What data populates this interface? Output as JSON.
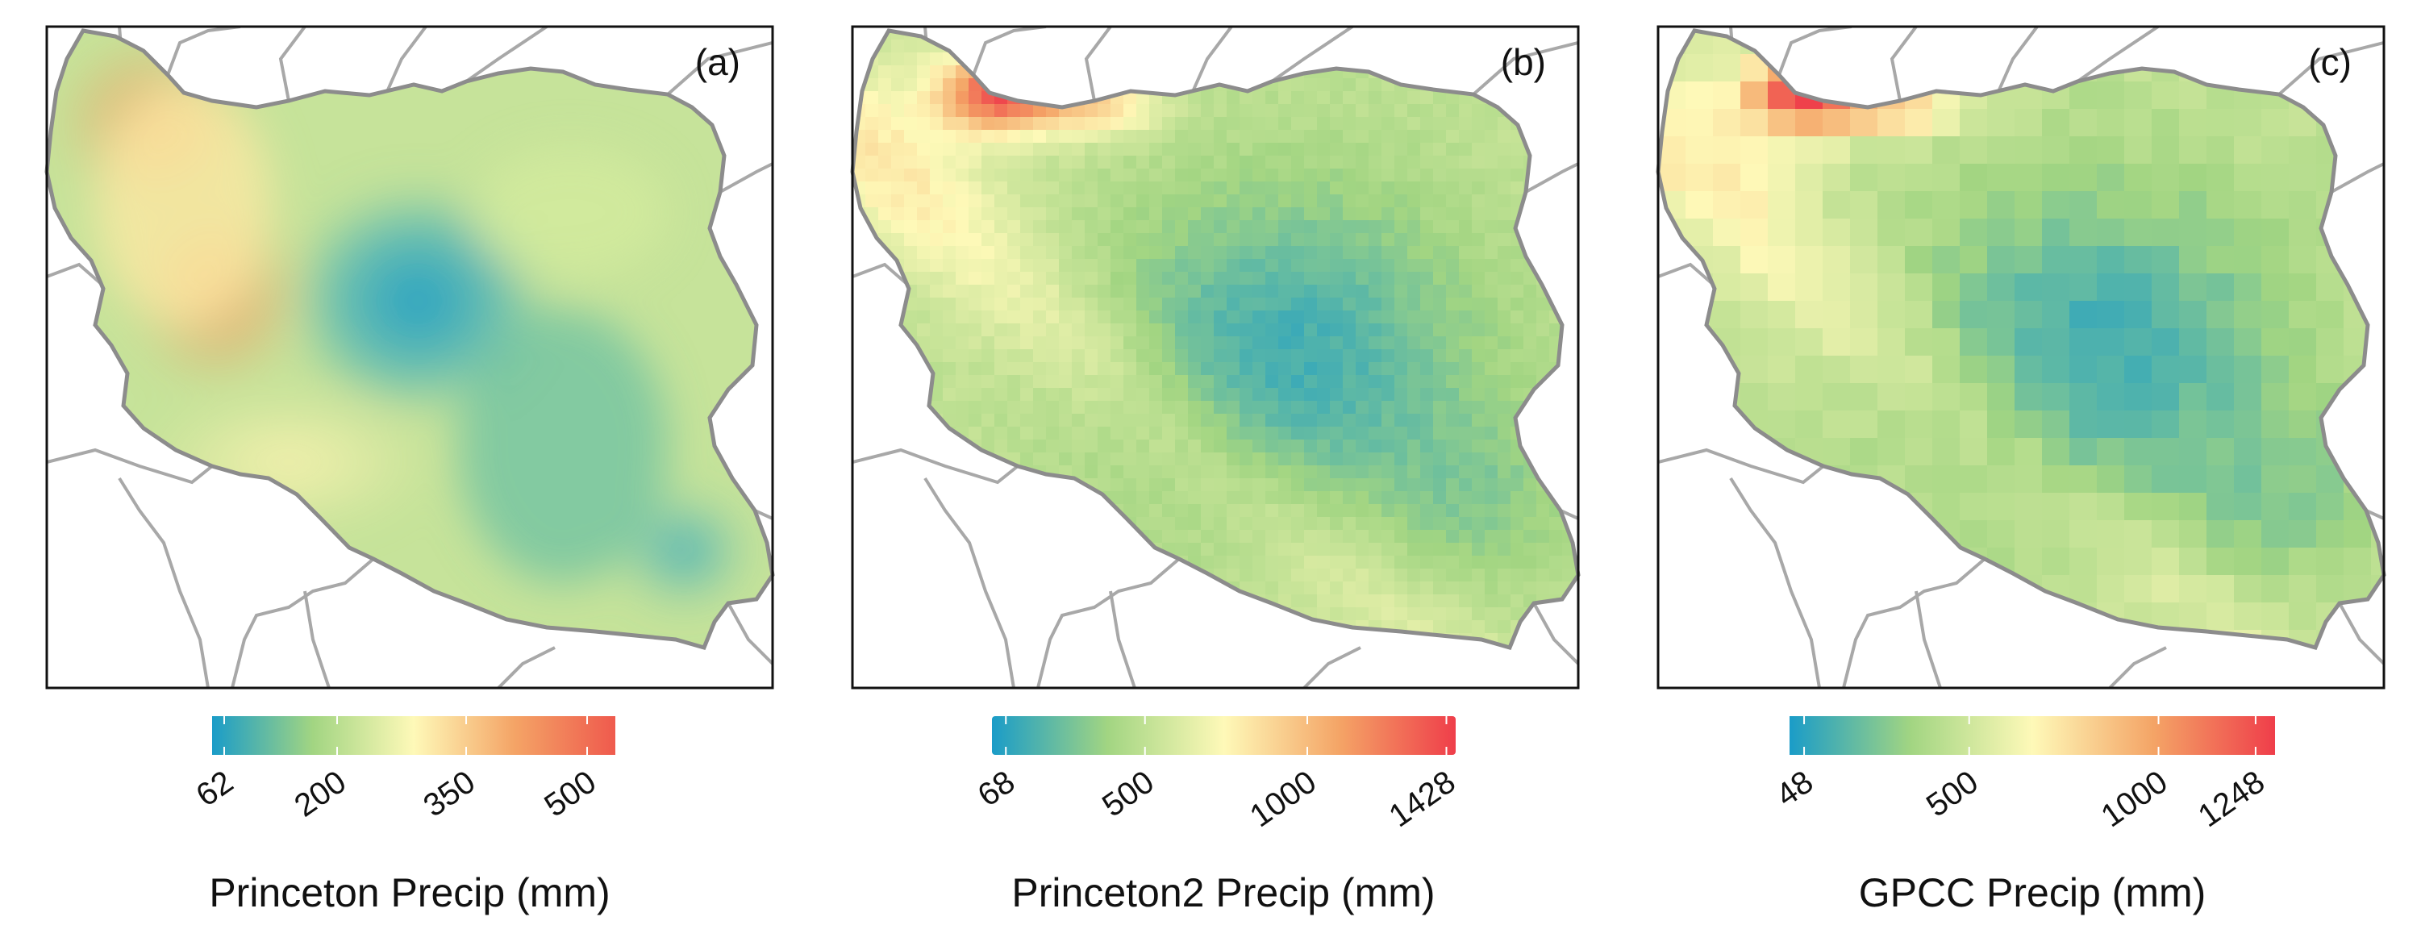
{
  "panels": [
    {
      "id": "a",
      "tag": "(a)",
      "title": "Princeton Precip (mm)",
      "ticks": [
        "62",
        "200",
        "350",
        "500"
      ],
      "colors": [
        "#1a9cc8",
        "#a2d582",
        "#fef9b8",
        "#f4a466",
        "#ef5a4d"
      ],
      "smooth": true
    },
    {
      "id": "b",
      "tag": "(b)",
      "title": "Princeton2 Precip (mm)",
      "ticks": [
        "68",
        "500",
        "1000",
        "1428"
      ],
      "colors": [
        "#1a9cc8",
        "#a2d582",
        "#fef9b8",
        "#f4a466",
        "#ef3e4a"
      ],
      "smooth": false
    },
    {
      "id": "c",
      "tag": "(c)",
      "title": "GPCC Precip (mm)",
      "ticks": [
        "48",
        "500",
        "1000",
        "1248"
      ],
      "colors": [
        "#1a9cc8",
        "#a2d582",
        "#fef9b8",
        "#f4a466",
        "#ef3e4a"
      ],
      "smooth": false
    }
  ],
  "style": {
    "border_color": "#8c8c8c",
    "country_fill": "#9fd27e"
  }
}
